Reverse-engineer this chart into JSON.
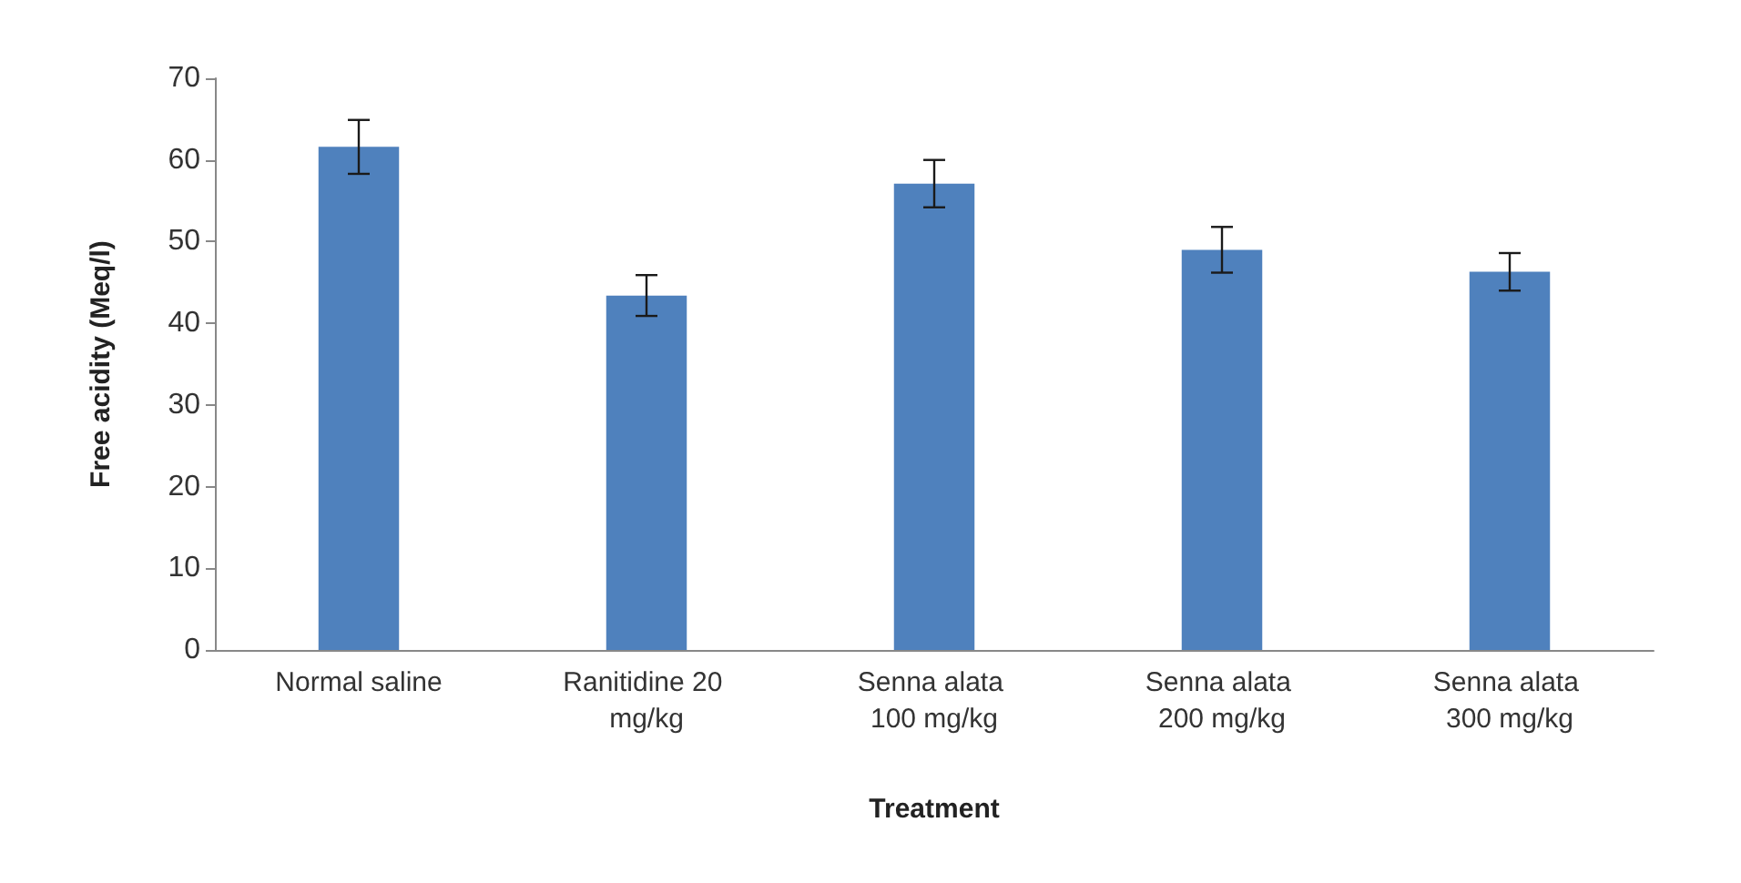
{
  "chart_data": {
    "type": "bar",
    "xlabel": "Treatment",
    "ylabel": "Free acidity (Meq/l)",
    "categories": [
      "Normal saline",
      "Ranitidine 20 mg/kg",
      "Senna alata 100 mg/kg",
      "Senna alata 200 mg/kg",
      "Senna alata 300 mg/kg"
    ],
    "values": [
      61.6,
      43.4,
      57.1,
      49.0,
      46.3
    ],
    "errors": [
      3.3,
      2.5,
      2.9,
      2.8,
      2.3
    ],
    "color": "#4f81bd",
    "ylim": [
      0,
      70
    ],
    "yticks": [
      0,
      10,
      20,
      30,
      40,
      50,
      60,
      70
    ],
    "grid": false
  }
}
